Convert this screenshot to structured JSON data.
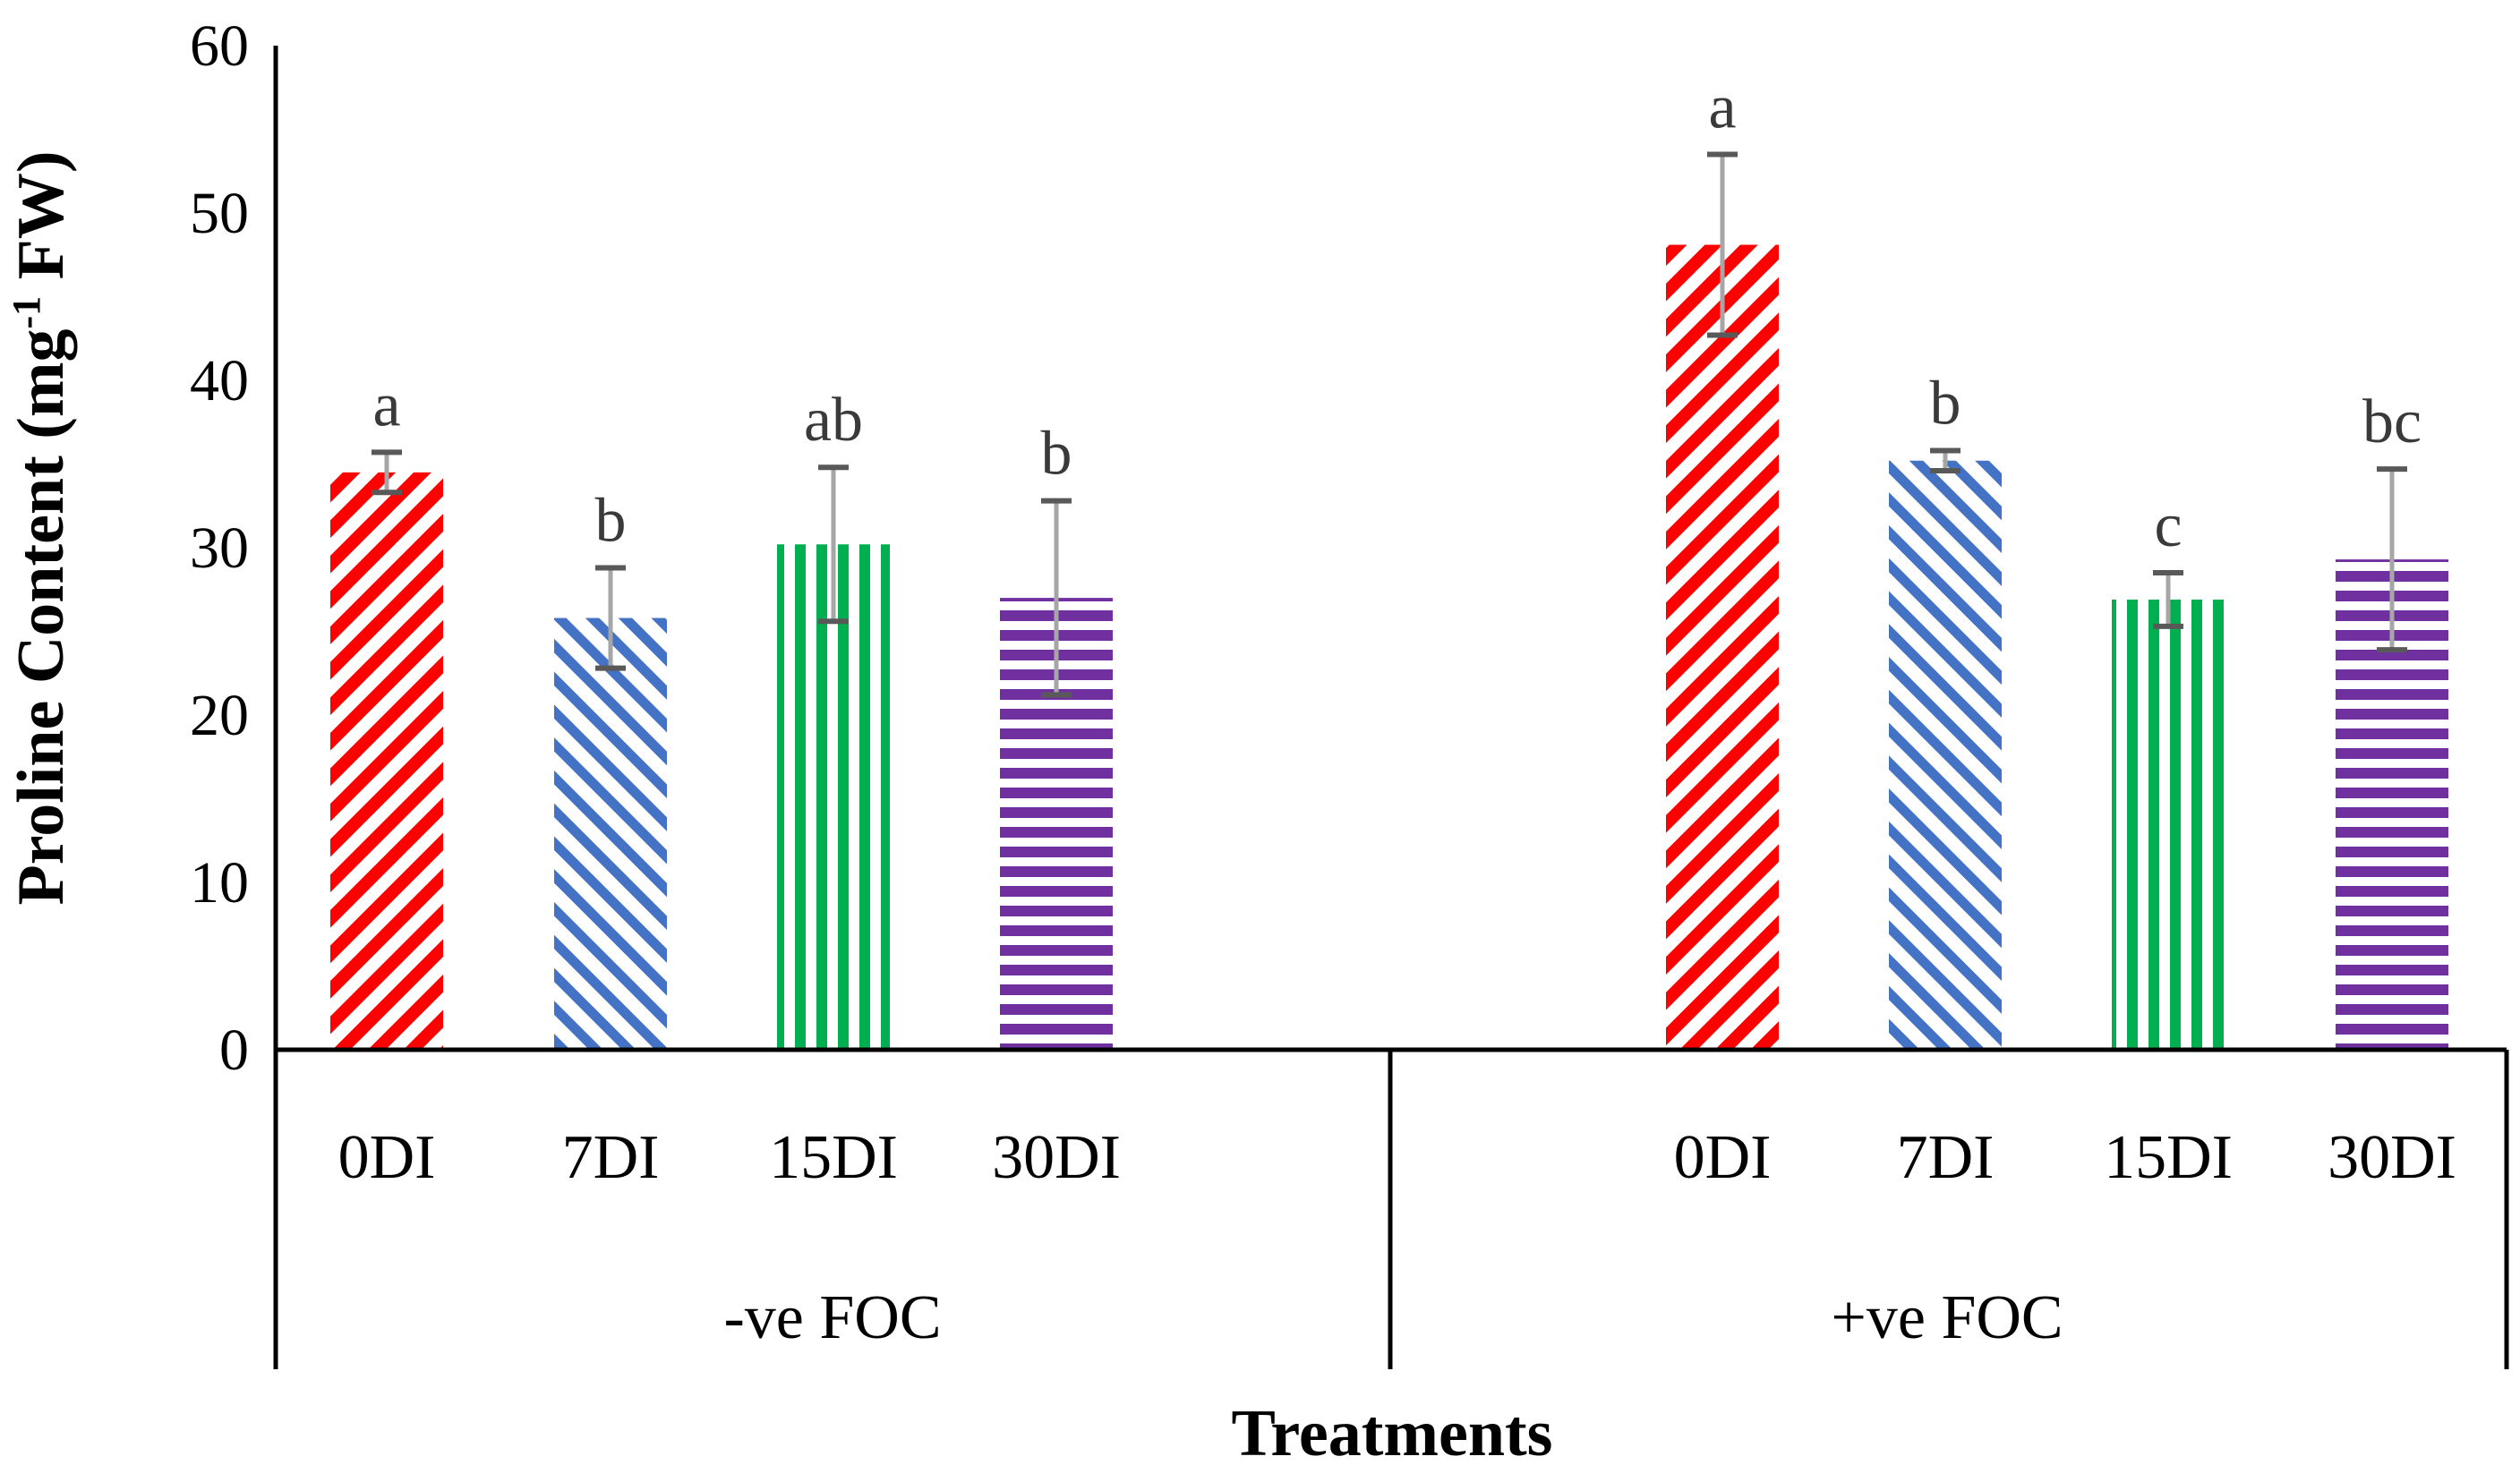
{
  "chart_data": {
    "type": "bar",
    "title": "",
    "xlabel": "Treatments",
    "ylabel": {
      "main": "Proline Content (mg",
      "sup": "-1",
      "tail": " FW)"
    },
    "ylim": [
      0,
      60
    ],
    "yticks": [
      "0",
      "10",
      "20",
      "30",
      "40",
      "50",
      "60"
    ],
    "grid": false,
    "legend": "none",
    "groups": [
      {
        "name": "-ve FOC",
        "bars": [
          {
            "category": "0DI",
            "value": 34.5,
            "error": 1.2,
            "letter": "a",
            "pattern": "diag-down",
            "color": "#ff0000"
          },
          {
            "category": "7DI",
            "value": 25.8,
            "error": 3.0,
            "letter": "b",
            "pattern": "diag-up",
            "color": "#4472c4"
          },
          {
            "category": "15DI",
            "value": 30.2,
            "error": 4.6,
            "letter": "ab",
            "pattern": "vertical",
            "color": "#00b050"
          },
          {
            "category": "30DI",
            "value": 27.0,
            "error": 5.8,
            "letter": "b",
            "pattern": "horizontal",
            "color": "#7030a0"
          }
        ]
      },
      {
        "name": "+ve FOC",
        "bars": [
          {
            "category": "0DI",
            "value": 48.1,
            "error": 5.4,
            "letter": "a",
            "pattern": "diag-down",
            "color": "#ff0000"
          },
          {
            "category": "7DI",
            "value": 35.2,
            "error": 0.6,
            "letter": "b",
            "pattern": "diag-up",
            "color": "#4472c4"
          },
          {
            "category": "15DI",
            "value": 26.9,
            "error": 1.6,
            "letter": "c",
            "pattern": "vertical",
            "color": "#00b050"
          },
          {
            "category": "30DI",
            "value": 29.3,
            "error": 5.4,
            "letter": "bc",
            "pattern": "horizontal",
            "color": "#7030a0"
          }
        ]
      }
    ],
    "colors": {
      "axis": "#000000",
      "error_bar": "#595959",
      "error_stem": "#a6a6a6"
    }
  }
}
